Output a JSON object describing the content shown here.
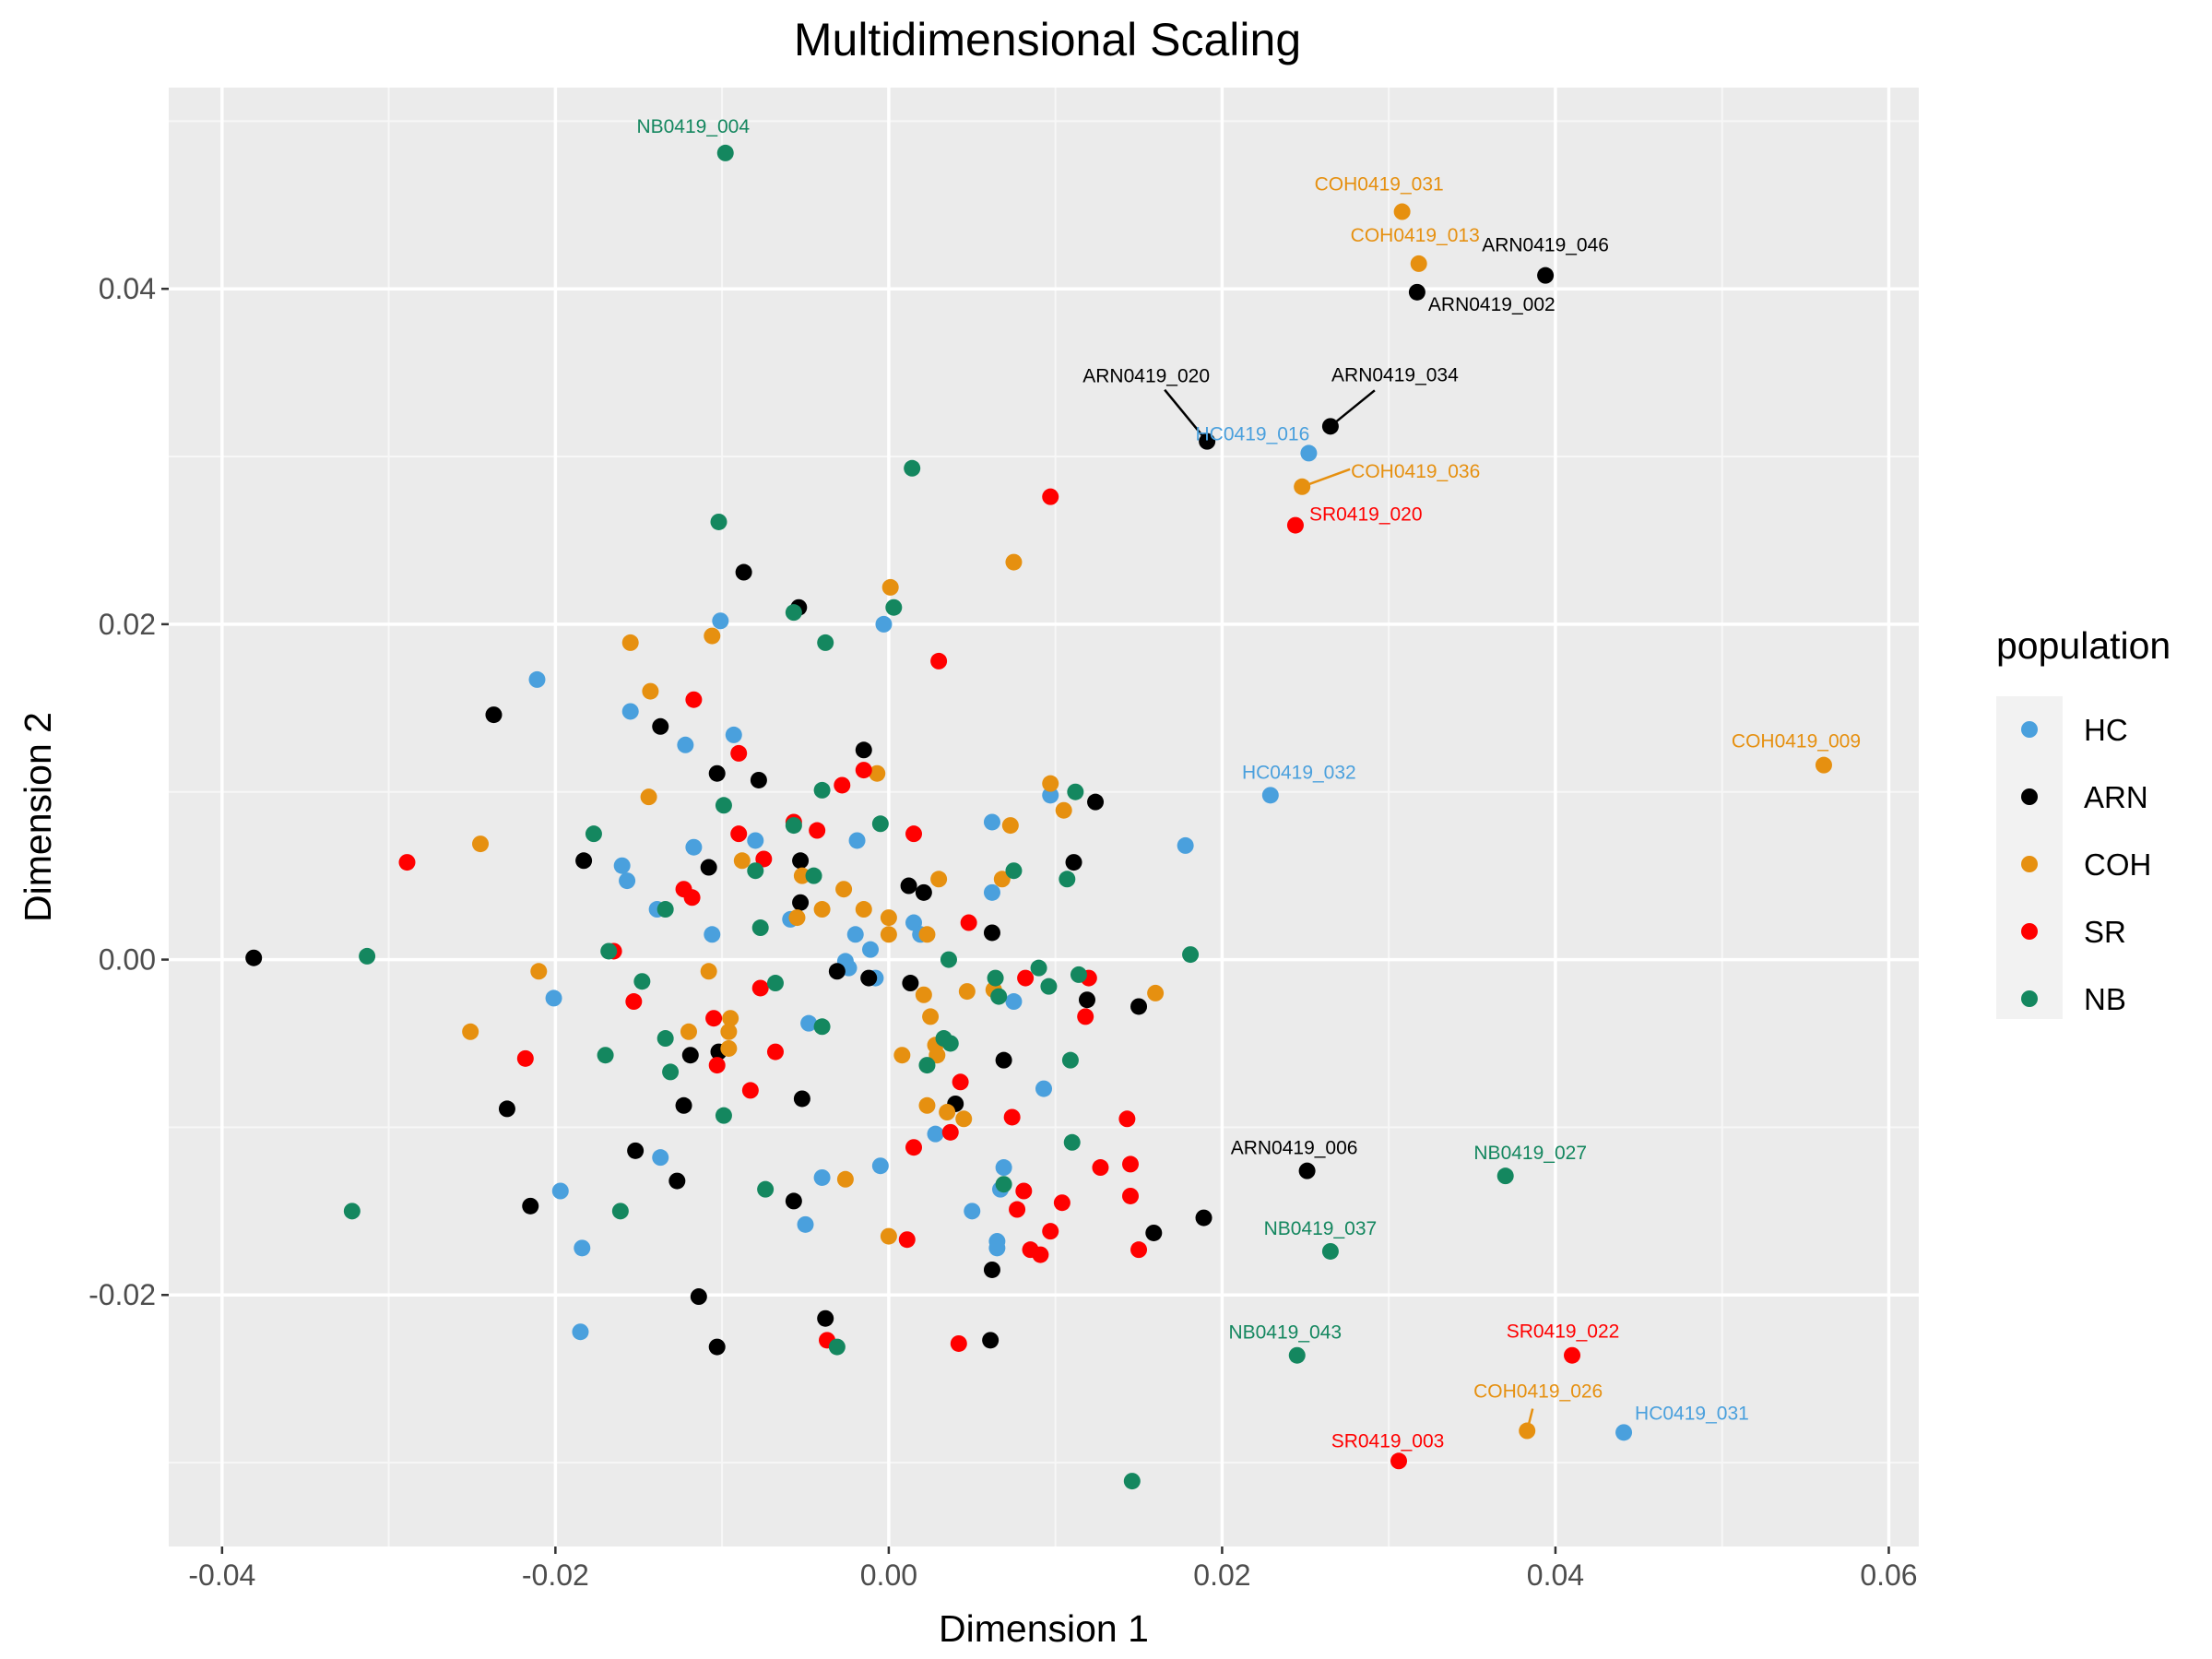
{
  "chart_data": {
    "type": "scatter",
    "title": "Multidimensional Scaling",
    "xlabel": "Dimension 1",
    "ylabel": "Dimension 2",
    "xlim": [
      -0.0432,
      0.0618
    ],
    "ylim": [
      -0.035,
      0.052
    ],
    "x_ticks": [
      -0.04,
      -0.02,
      0.0,
      0.02,
      0.04,
      0.06
    ],
    "x_tick_labels": [
      "-0.04",
      "-0.02",
      "0.00",
      "0.02",
      "0.04",
      "0.06"
    ],
    "y_ticks": [
      -0.02,
      0.0,
      0.02,
      0.04
    ],
    "y_tick_labels": [
      "-0.02",
      "0.00",
      "0.02",
      "0.04"
    ],
    "grid": true,
    "legend": {
      "title": "population",
      "position": "right"
    },
    "series": [
      {
        "name": "HC",
        "color": "#4aa0dd",
        "points": [
          [
            -0.0211,
            0.0167
          ],
          [
            -0.0101,
            0.0202
          ],
          [
            -0.0003,
            0.02
          ],
          [
            -0.0155,
            0.0148
          ],
          [
            -0.0122,
            0.0128
          ],
          [
            -0.0093,
            0.0134
          ],
          [
            -0.0019,
            0.0071
          ],
          [
            -0.016,
            0.0056
          ],
          [
            -0.0157,
            0.0047
          ],
          [
            -0.0117,
            0.0067
          ],
          [
            -0.008,
            0.0071
          ],
          [
            -0.0139,
            0.003
          ],
          [
            -0.0106,
            0.0015
          ],
          [
            -0.0059,
            0.0024
          ],
          [
            -0.002,
            0.0015
          ],
          [
            -0.0011,
            0.0006
          ],
          [
            -0.0026,
            -0.0001
          ],
          [
            -0.0024,
            -0.0005
          ],
          [
            -0.0008,
            -0.0011
          ],
          [
            0.0015,
            0.0022
          ],
          [
            0.0019,
            0.0015
          ],
          [
            0.0062,
            0.0082
          ],
          [
            0.0062,
            0.004
          ],
          [
            0.0097,
            0.0098
          ],
          [
            0.0178,
            0.0068
          ],
          [
            -0.0201,
            -0.0023
          ],
          [
            -0.0048,
            -0.0038
          ],
          [
            0.0075,
            -0.0025
          ],
          [
            0.0093,
            -0.0077
          ],
          [
            -0.0137,
            -0.0118
          ],
          [
            -0.004,
            -0.013
          ],
          [
            -0.0005,
            -0.0123
          ],
          [
            0.0028,
            -0.0104
          ],
          [
            0.0069,
            -0.0124
          ],
          [
            0.0067,
            -0.0137
          ],
          [
            -0.0197,
            -0.0138
          ],
          [
            -0.0184,
            -0.0172
          ],
          [
            -0.005,
            -0.0158
          ],
          [
            0.005,
            -0.015
          ],
          [
            0.0065,
            -0.0168
          ],
          [
            0.0065,
            -0.0172
          ],
          [
            -0.0185,
            -0.0222
          ],
          [
            0.0252,
            0.0302
          ],
          [
            0.0229,
            0.0098
          ],
          [
            0.0441,
            -0.0282
          ]
        ]
      },
      {
        "name": "ARN",
        "color": "#000000",
        "points": [
          [
            -0.0381,
            0.0001
          ],
          [
            -0.0237,
            0.0146
          ],
          [
            -0.0087,
            0.0231
          ],
          [
            -0.0054,
            0.021
          ],
          [
            -0.0137,
            0.0139
          ],
          [
            -0.0103,
            0.0111
          ],
          [
            -0.0078,
            0.0107
          ],
          [
            -0.0015,
            0.0125
          ],
          [
            -0.0183,
            0.0059
          ],
          [
            -0.0108,
            0.0055
          ],
          [
            -0.0053,
            0.0059
          ],
          [
            -0.0053,
            0.0034
          ],
          [
            0.0012,
            0.0044
          ],
          [
            0.0021,
            0.004
          ],
          [
            0.0062,
            0.0016
          ],
          [
            0.0111,
            0.0058
          ],
          [
            0.0124,
            0.0094
          ],
          [
            -0.0031,
            -0.0007
          ],
          [
            -0.0012,
            -0.0011
          ],
          [
            0.0013,
            -0.0014
          ],
          [
            0.0119,
            -0.0024
          ],
          [
            0.015,
            -0.0028
          ],
          [
            -0.0119,
            -0.0057
          ],
          [
            -0.0102,
            -0.0055
          ],
          [
            0.0069,
            -0.006
          ],
          [
            -0.0229,
            -0.0089
          ],
          [
            -0.0123,
            -0.0087
          ],
          [
            -0.0052,
            -0.0083
          ],
          [
            0.004,
            -0.0086
          ],
          [
            -0.0152,
            -0.0114
          ],
          [
            -0.0127,
            -0.0132
          ],
          [
            -0.0057,
            -0.0144
          ],
          [
            -0.0215,
            -0.0147
          ],
          [
            0.0189,
            -0.0154
          ],
          [
            0.0159,
            -0.0163
          ],
          [
            0.0062,
            -0.0185
          ],
          [
            -0.0114,
            -0.0201
          ],
          [
            -0.0103,
            -0.0231
          ],
          [
            -0.0038,
            -0.0214
          ],
          [
            0.0061,
            -0.0227
          ],
          [
            0.0191,
            0.0309
          ],
          [
            0.0265,
            0.0318
          ],
          [
            0.0317,
            0.0398
          ],
          [
            0.0394,
            0.0408
          ],
          [
            0.0251,
            -0.0126
          ]
        ]
      },
      {
        "name": "COH",
        "color": "#e69010",
        "points": [
          [
            0.0001,
            0.0222
          ],
          [
            0.0075,
            0.0237
          ],
          [
            -0.0155,
            0.0189
          ],
          [
            -0.0106,
            0.0193
          ],
          [
            -0.0143,
            0.016
          ],
          [
            -0.0007,
            0.0111
          ],
          [
            0.0097,
            0.0105
          ],
          [
            0.0105,
            0.0089
          ],
          [
            0.0073,
            0.008
          ],
          [
            -0.0144,
            0.0097
          ],
          [
            -0.0245,
            0.0069
          ],
          [
            -0.0088,
            0.0059
          ],
          [
            -0.0052,
            0.005
          ],
          [
            -0.0027,
            0.0042
          ],
          [
            0.003,
            0.0048
          ],
          [
            0.0068,
            0.0048
          ],
          [
            -0.004,
            0.003
          ],
          [
            -0.0015,
            0.003
          ],
          [
            -0.0055,
            0.0025
          ],
          [
            0.0,
            0.0015
          ],
          [
            0.0023,
            0.0015
          ],
          [
            0.0,
            0.0025
          ],
          [
            -0.021,
            -0.0007
          ],
          [
            -0.0108,
            -0.0007
          ],
          [
            0.0021,
            -0.0021
          ],
          [
            0.0047,
            -0.0019
          ],
          [
            0.0063,
            -0.0018
          ],
          [
            0.016,
            -0.002
          ],
          [
            -0.0251,
            -0.0043
          ],
          [
            -0.012,
            -0.0043
          ],
          [
            -0.0095,
            -0.0035
          ],
          [
            -0.0096,
            -0.0043
          ],
          [
            -0.0096,
            -0.0053
          ],
          [
            0.0008,
            -0.0057
          ],
          [
            0.0025,
            -0.0034
          ],
          [
            0.0028,
            -0.0051
          ],
          [
            0.0023,
            -0.0087
          ],
          [
            0.0035,
            -0.0091
          ],
          [
            0.0045,
            -0.0095
          ],
          [
            -0.0026,
            -0.0131
          ],
          [
            0.0,
            -0.0165
          ],
          [
            0.0029,
            -0.0057
          ],
          [
            0.0248,
            0.0282
          ],
          [
            0.0308,
            0.0446
          ],
          [
            0.0318,
            0.0415
          ],
          [
            0.0561,
            0.0116
          ],
          [
            0.0383,
            -0.0281
          ]
        ]
      },
      {
        "name": "SR",
        "color": "#ff0000",
        "points": [
          [
            0.0097,
            0.0276
          ],
          [
            0.003,
            0.0178
          ],
          [
            -0.0117,
            0.0155
          ],
          [
            -0.009,
            0.0123
          ],
          [
            -0.0028,
            0.0104
          ],
          [
            -0.0015,
            0.0113
          ],
          [
            -0.0057,
            0.0082
          ],
          [
            -0.0043,
            0.0077
          ],
          [
            -0.009,
            0.0075
          ],
          [
            0.0015,
            0.0075
          ],
          [
            -0.0289,
            0.0058
          ],
          [
            -0.0075,
            0.006
          ],
          [
            -0.0123,
            0.0042
          ],
          [
            -0.0118,
            0.0037
          ],
          [
            -0.0165,
            0.0005
          ],
          [
            0.0048,
            0.0022
          ],
          [
            -0.0153,
            -0.0025
          ],
          [
            -0.0077,
            -0.0017
          ],
          [
            0.0082,
            -0.0011
          ],
          [
            0.012,
            -0.0011
          ],
          [
            0.0118,
            -0.0034
          ],
          [
            -0.0218,
            -0.0059
          ],
          [
            -0.0105,
            -0.0035
          ],
          [
            -0.0103,
            -0.0063
          ],
          [
            -0.0068,
            -0.0055
          ],
          [
            0.0043,
            -0.0073
          ],
          [
            -0.0083,
            -0.0078
          ],
          [
            0.0037,
            -0.0103
          ],
          [
            0.0015,
            -0.0112
          ],
          [
            0.0074,
            -0.0094
          ],
          [
            0.0143,
            -0.0095
          ],
          [
            0.0127,
            -0.0124
          ],
          [
            0.0145,
            -0.0122
          ],
          [
            0.0081,
            -0.0138
          ],
          [
            0.0104,
            -0.0145
          ],
          [
            0.0077,
            -0.0149
          ],
          [
            0.0145,
            -0.0141
          ],
          [
            0.0011,
            -0.0167
          ],
          [
            0.0097,
            -0.0162
          ],
          [
            0.0085,
            -0.0173
          ],
          [
            0.0091,
            -0.0176
          ],
          [
            0.015,
            -0.0173
          ],
          [
            -0.0037,
            -0.0227
          ],
          [
            0.0042,
            -0.0229
          ],
          [
            0.0244,
            0.0259
          ],
          [
            0.041,
            -0.0236
          ],
          [
            0.0306,
            -0.0299
          ]
        ]
      },
      {
        "name": "NB",
        "color": "#14875f",
        "points": [
          [
            -0.0098,
            0.0481
          ],
          [
            0.0014,
            0.0293
          ],
          [
            -0.0102,
            0.0261
          ],
          [
            -0.0057,
            0.0207
          ],
          [
            0.0003,
            0.021
          ],
          [
            -0.0038,
            0.0189
          ],
          [
            -0.004,
            0.0101
          ],
          [
            -0.0099,
            0.0092
          ],
          [
            0.0112,
            0.01
          ],
          [
            -0.0177,
            0.0075
          ],
          [
            -0.0057,
            0.008
          ],
          [
            -0.0005,
            0.0081
          ],
          [
            -0.008,
            0.0053
          ],
          [
            -0.0045,
            0.005
          ],
          [
            0.0075,
            0.0053
          ],
          [
            0.0107,
            0.0048
          ],
          [
            -0.0134,
            0.003
          ],
          [
            -0.0168,
            0.0005
          ],
          [
            -0.0077,
            0.0019
          ],
          [
            0.0036,
            0.0
          ],
          [
            0.0181,
            0.0003
          ],
          [
            -0.0313,
            0.0002
          ],
          [
            -0.0148,
            -0.0013
          ],
          [
            -0.0068,
            -0.0014
          ],
          [
            0.0064,
            -0.0011
          ],
          [
            0.009,
            -0.0005
          ],
          [
            0.0114,
            -0.0009
          ],
          [
            0.0096,
            -0.0016
          ],
          [
            0.0066,
            -0.0022
          ],
          [
            -0.017,
            -0.0057
          ],
          [
            -0.0131,
            -0.0067
          ],
          [
            -0.0134,
            -0.0047
          ],
          [
            -0.004,
            -0.004
          ],
          [
            0.0033,
            -0.0047
          ],
          [
            0.0037,
            -0.005
          ],
          [
            0.0023,
            -0.0063
          ],
          [
            0.0109,
            -0.006
          ],
          [
            -0.0099,
            -0.0093
          ],
          [
            0.011,
            -0.0109
          ],
          [
            -0.0074,
            -0.0137
          ],
          [
            0.0069,
            -0.0134
          ],
          [
            -0.0322,
            -0.015
          ],
          [
            -0.0161,
            -0.015
          ],
          [
            -0.0031,
            -0.0231
          ],
          [
            0.0146,
            -0.0311
          ],
          [
            0.037,
            -0.0129
          ],
          [
            0.0265,
            -0.0174
          ],
          [
            0.0245,
            -0.0236
          ]
        ]
      }
    ],
    "annotations": [
      {
        "text": "NB0419_004",
        "x": -0.0098,
        "y": 0.0481,
        "series": "NB",
        "color": "#14875f"
      },
      {
        "text": "COH0419_031",
        "x": 0.0308,
        "y": 0.0446,
        "series": "COH",
        "color": "#e69010"
      },
      {
        "text": "COH0419_013",
        "x": 0.0318,
        "y": 0.0415,
        "series": "COH",
        "color": "#e69010"
      },
      {
        "text": "ARN0419_046",
        "x": 0.0394,
        "y": 0.0408,
        "series": "ARN",
        "color": "#000000"
      },
      {
        "text": "ARN0419_002",
        "x": 0.0317,
        "y": 0.0398,
        "series": "ARN",
        "color": "#000000"
      },
      {
        "text": "ARN0419_020",
        "x": 0.0191,
        "y": 0.0309,
        "series": "ARN",
        "color": "#000000"
      },
      {
        "text": "ARN0419_034",
        "x": 0.0265,
        "y": 0.0318,
        "series": "ARN",
        "color": "#000000"
      },
      {
        "text": "HC0419_016",
        "x": 0.0252,
        "y": 0.0302,
        "series": "HC",
        "color": "#4aa0dd"
      },
      {
        "text": "COH0419_036",
        "x": 0.0248,
        "y": 0.0282,
        "series": "COH",
        "color": "#e69010"
      },
      {
        "text": "SR0419_020",
        "x": 0.0244,
        "y": 0.0259,
        "series": "SR",
        "color": "#ff0000"
      },
      {
        "text": "HC0419_032",
        "x": 0.0229,
        "y": 0.0098,
        "series": "HC",
        "color": "#4aa0dd"
      },
      {
        "text": "COH0419_009",
        "x": 0.0561,
        "y": 0.0116,
        "series": "COH",
        "color": "#e69010"
      },
      {
        "text": "ARN0419_006",
        "x": 0.0251,
        "y": -0.0126,
        "series": "ARN",
        "color": "#000000"
      },
      {
        "text": "NB0419_027",
        "x": 0.037,
        "y": -0.0129,
        "series": "NB",
        "color": "#14875f"
      },
      {
        "text": "NB0419_037",
        "x": 0.0265,
        "y": -0.0174,
        "series": "NB",
        "color": "#14875f"
      },
      {
        "text": "NB0419_043",
        "x": 0.0245,
        "y": -0.0236,
        "series": "NB",
        "color": "#14875f"
      },
      {
        "text": "SR0419_022",
        "x": 0.041,
        "y": -0.0236,
        "series": "SR",
        "color": "#ff0000"
      },
      {
        "text": "COH0419_026",
        "x": 0.0383,
        "y": -0.0281,
        "series": "COH",
        "color": "#e69010"
      },
      {
        "text": "HC0419_031",
        "x": 0.0441,
        "y": -0.0282,
        "series": "HC",
        "color": "#4aa0dd"
      },
      {
        "text": "SR0419_003",
        "x": 0.0306,
        "y": -0.0299,
        "series": "SR",
        "color": "#ff0000"
      }
    ]
  }
}
